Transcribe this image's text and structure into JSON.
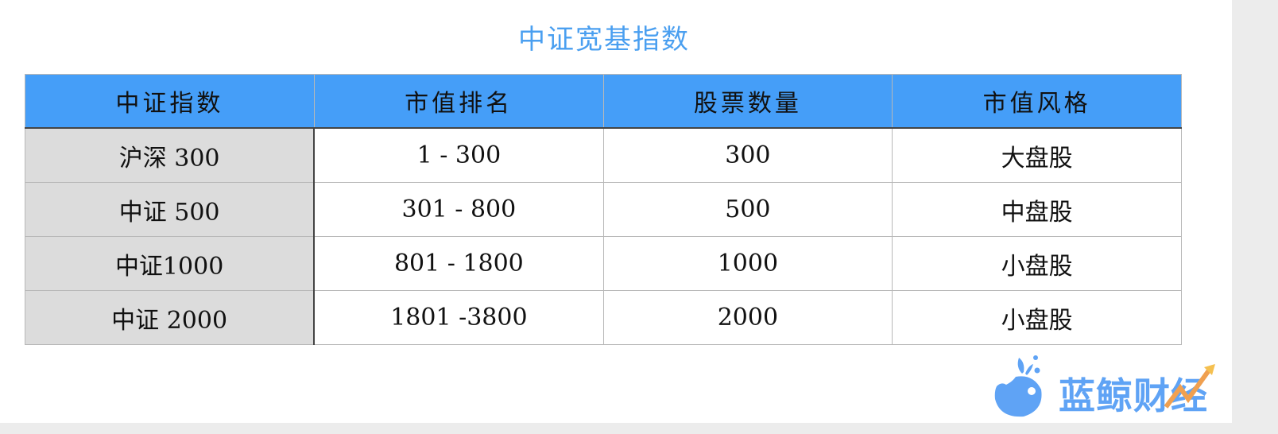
{
  "title": "中证宽基指数",
  "table": {
    "headers": [
      "中证指数",
      "市值排名",
      "股票数量",
      "市值风格"
    ],
    "rows": [
      [
        "沪深 300",
        "1 - 300",
        "300",
        "大盘股"
      ],
      [
        "中证 500",
        "301 - 800",
        "500",
        "中盘股"
      ],
      [
        "中证1000",
        "801 - 1800",
        "1000",
        "小盘股"
      ],
      [
        "中证 2000",
        "1801 -3800",
        "2000",
        "小盘股"
      ]
    ]
  },
  "logo": {
    "text": "蓝鲸财经",
    "icon": "whale-icon"
  },
  "colors": {
    "header": "#459ef8",
    "title": "#4a9ff0",
    "first_column": "#dcdcdc"
  }
}
